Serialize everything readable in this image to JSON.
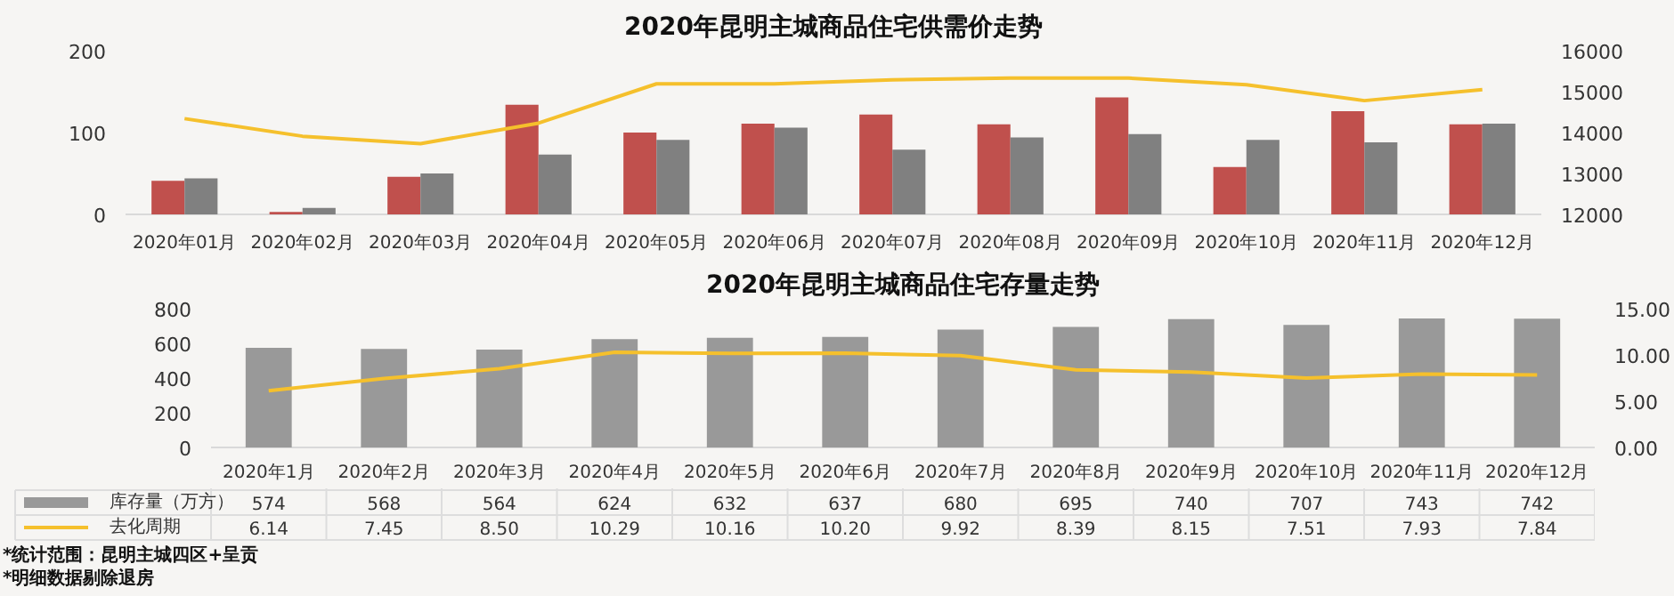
{
  "chart_data": [
    {
      "type": "bar",
      "title": "2020年昆明主城商品住宅供需价走势",
      "categories": [
        "2020年01月",
        "2020年02月",
        "2020年03月",
        "2020年04月",
        "2020年05月",
        "2020年06月",
        "2020年07月",
        "2020年08月",
        "2020年09月",
        "2020年10月",
        "2020年11月",
        "2020年12月"
      ],
      "series": [
        {
          "color": "#c0504d",
          "values": [
            41,
            3,
            46,
            134,
            100,
            111,
            122,
            110,
            143,
            58,
            126,
            110
          ]
        },
        {
          "color": "#808080",
          "values": [
            44,
            8,
            50,
            73,
            91,
            106,
            79,
            94,
            98,
            91,
            88,
            111
          ]
        },
        {
          "type": "line",
          "axis": "y2",
          "color": "#f5c02c",
          "values": [
            14340,
            13910,
            13730,
            14230,
            15190,
            15190,
            15290,
            15330,
            15330,
            15170,
            14780,
            15050
          ]
        }
      ],
      "ylim": [
        0,
        200
      ],
      "yticks": [
        0,
        100,
        200
      ],
      "y2lim": [
        12000,
        16000
      ],
      "y2ticks": [
        12000,
        13000,
        14000,
        15000,
        16000
      ],
      "grid": false,
      "marker": "none"
    },
    {
      "type": "bar",
      "title": "2020年昆明主城商品住宅存量走势",
      "categories": [
        "2020年1月",
        "2020年2月",
        "2020年3月",
        "2020年4月",
        "2020年5月",
        "2020年6月",
        "2020年7月",
        "2020年8月",
        "2020年9月",
        "2020年10月",
        "2020年11月",
        "2020年12月"
      ],
      "series": [
        {
          "name": "库存量（万方）",
          "color": "#999999",
          "values": [
            574,
            568,
            564,
            624,
            632,
            637,
            680,
            695,
            740,
            707,
            743,
            742
          ],
          "value_labels": [
            "574",
            "568",
            "564",
            "624",
            "632",
            "637",
            "680",
            "695",
            "740",
            "707",
            "743",
            "742"
          ]
        },
        {
          "name": "去化周期",
          "type": "line",
          "axis": "y2",
          "color": "#f5c02c",
          "values": [
            6.14,
            7.45,
            8.5,
            10.29,
            10.16,
            10.2,
            9.92,
            8.39,
            8.15,
            7.51,
            7.93,
            7.84
          ],
          "value_labels": [
            "6.14",
            "7.45",
            "8.50",
            "10.29",
            "10.16",
            "10.20",
            "9.92",
            "8.39",
            "8.15",
            "7.51",
            "7.93",
            "7.84"
          ]
        }
      ],
      "ylim": [
        0,
        800
      ],
      "yticks": [
        0,
        200,
        400,
        600,
        800
      ],
      "y2lim": [
        0,
        15
      ],
      "y2ticks": [
        {
          "value": 0,
          "label": "0.00"
        },
        {
          "value": 5,
          "label": "5.00"
        },
        {
          "value": 10,
          "label": "10.00"
        },
        {
          "value": 15,
          "label": "15.00"
        }
      ],
      "grid": false,
      "marker": "none",
      "legend": "bottom left",
      "annotations": [
        "*统计范围：昆明主城四区+呈贡",
        "*明细数据剔除退房"
      ]
    }
  ]
}
